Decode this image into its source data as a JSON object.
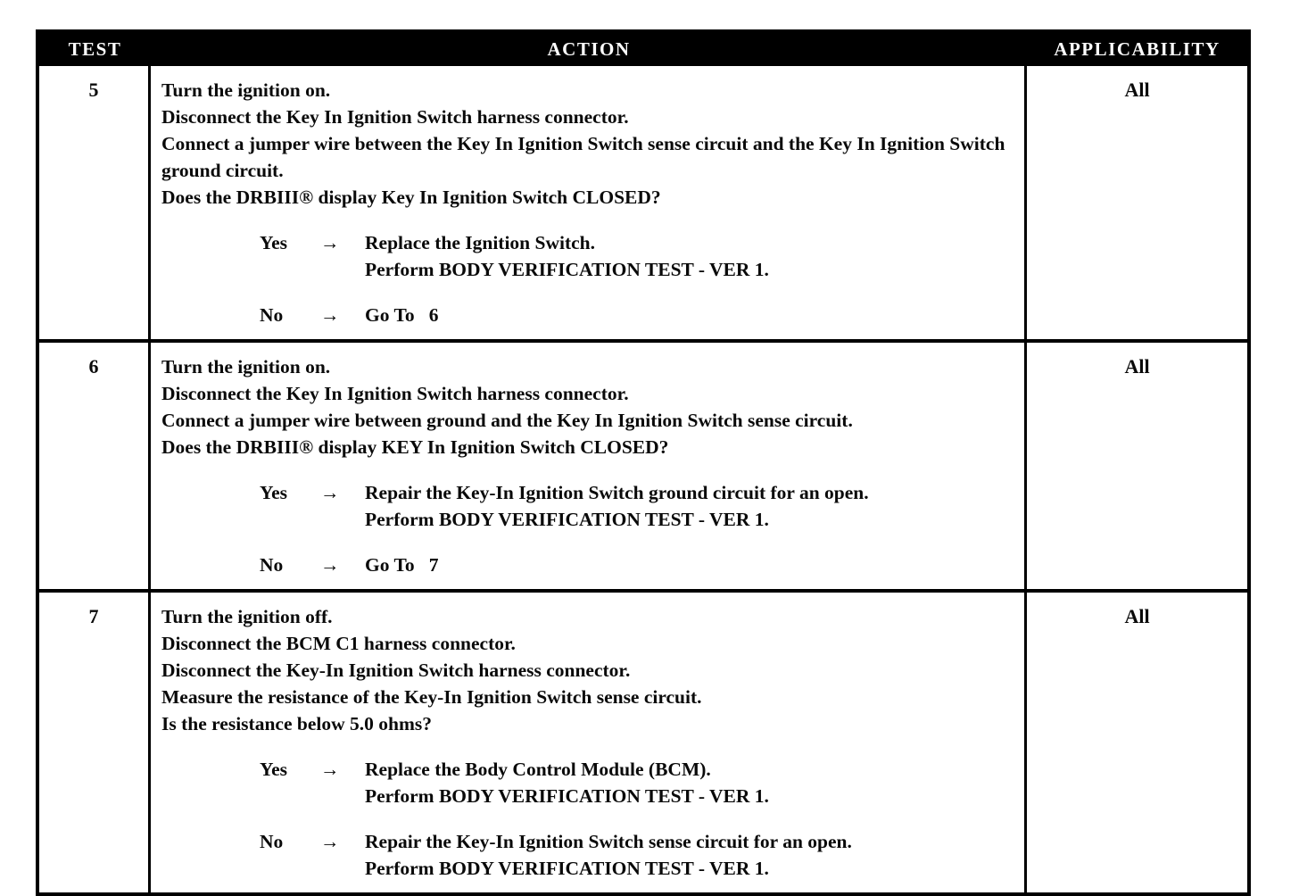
{
  "table": {
    "headers": {
      "test": "TEST",
      "action": "ACTION",
      "applicability": "APPLICABILITY"
    },
    "rows": [
      {
        "test": "5",
        "applicability": "All",
        "action_lines": [
          "Turn the ignition on.",
          "Disconnect the Key In Ignition Switch harness connector.",
          "Connect a jumper wire between the Key In Ignition Switch sense circuit and the Key In Ignition Switch ground circuit.",
          "Does the DRBIII® display Key In Ignition Switch CLOSED?"
        ],
        "branches": [
          {
            "answer": "Yes",
            "arrow": "→",
            "lines": [
              "Replace the Ignition Switch.",
              "Perform BODY VERIFICATION TEST - VER 1."
            ]
          },
          {
            "answer": "No",
            "arrow": "→",
            "lines": [
              "Go To   6"
            ]
          }
        ]
      },
      {
        "test": "6",
        "applicability": "All",
        "action_lines": [
          "Turn the ignition on.",
          "Disconnect the Key In Ignition Switch harness connector.",
          "Connect a jumper wire between ground and the Key In Ignition Switch sense circuit.",
          "Does the DRBIII® display KEY In Ignition Switch CLOSED?"
        ],
        "branches": [
          {
            "answer": "Yes",
            "arrow": "→",
            "lines": [
              "Repair the Key-In Ignition Switch ground circuit for an open.",
              "Perform BODY VERIFICATION TEST - VER 1."
            ]
          },
          {
            "answer": "No",
            "arrow": "→",
            "lines": [
              "Go To   7"
            ]
          }
        ]
      },
      {
        "test": "7",
        "applicability": "All",
        "action_lines": [
          "Turn the ignition off.",
          "Disconnect the BCM C1 harness connector.",
          "Disconnect the Key-In Ignition Switch harness connector.",
          "Measure the resistance of the Key-In Ignition Switch sense circuit.",
          "Is the resistance below 5.0 ohms?"
        ],
        "branches": [
          {
            "answer": "Yes",
            "arrow": "→",
            "lines": [
              "Replace the Body Control Module (BCM).",
              "Perform BODY VERIFICATION TEST - VER 1."
            ]
          },
          {
            "answer": "No",
            "arrow": "→",
            "lines": [
              "Repair the Key-In Ignition Switch sense circuit for an open.",
              "Perform BODY VERIFICATION TEST - VER 1."
            ]
          }
        ]
      }
    ]
  }
}
